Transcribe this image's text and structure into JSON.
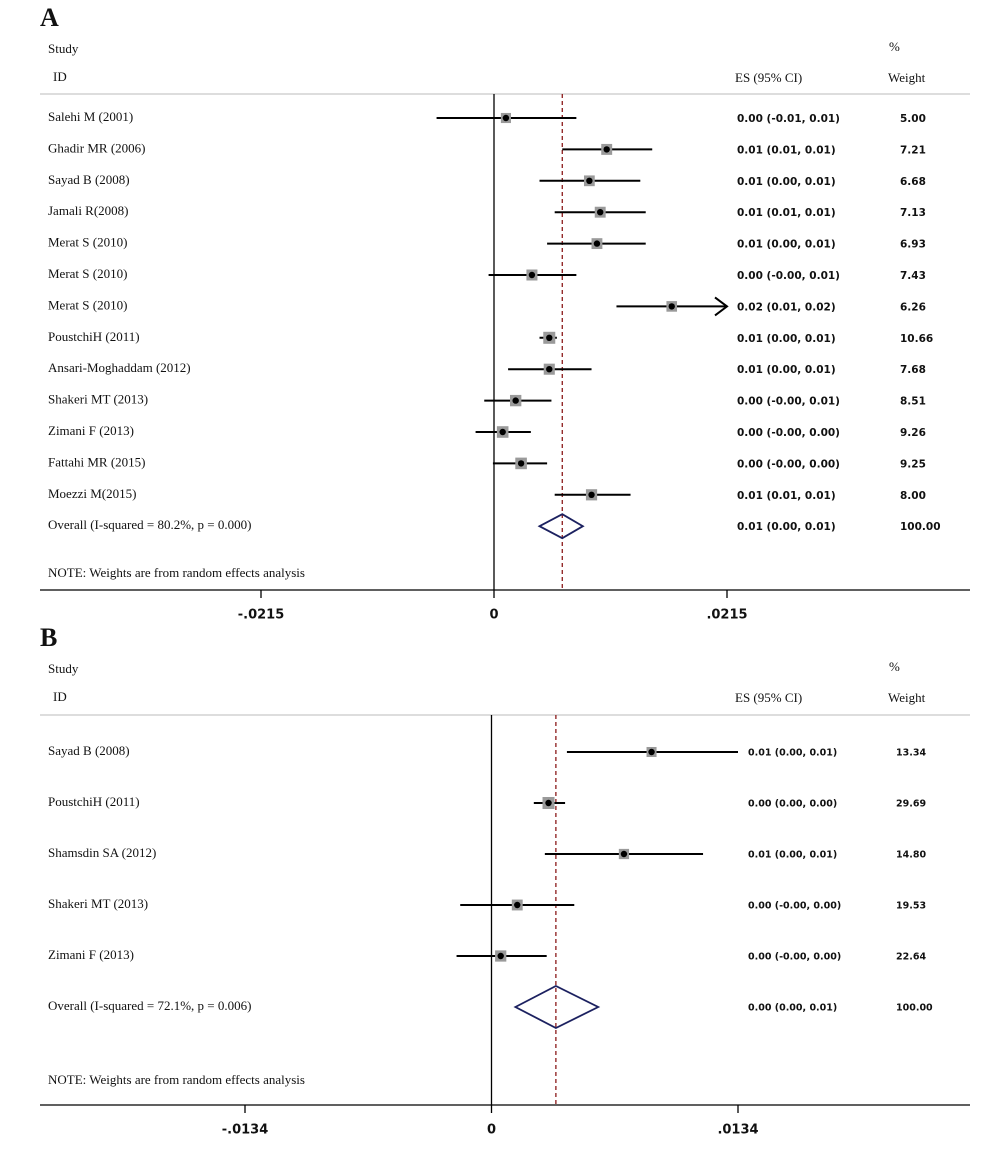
{
  "chart_data": [
    {
      "type": "forest",
      "panel": "A",
      "study_header": "Study",
      "id_header": "ID",
      "es_header": "ES (95% CI)",
      "weight_header_top": "%",
      "weight_header": "Weight",
      "note": "NOTE: Weights are from random effects analysis",
      "studies": [
        "Salehi M (2001)",
        "Ghadir MR (2006)",
        "Sayad B (2008)",
        "Jamali R(2008)",
        "Merat S (2010)",
        "Merat S (2010)",
        "Merat S (2010)",
        "PoustchiH (2011)",
        "Ansari-Moghaddam (2012)",
        "Shakeri MT (2013)",
        "Zimani F (2013)",
        "Fattahi MR (2015)",
        "Moezzi M(2015)"
      ],
      "values": [
        0.0011,
        0.0104,
        0.0088,
        0.0098,
        0.0095,
        0.0035,
        0.0164,
        0.0051,
        0.0051,
        0.002,
        0.0008,
        0.0025,
        0.009
      ],
      "lower": [
        -0.0053,
        0.0063,
        0.0042,
        0.0056,
        0.0049,
        -0.0005,
        0.0113,
        0.0042,
        0.0013,
        -0.0009,
        -0.0017,
        -0.0001,
        0.0056
      ],
      "upper": [
        0.0076,
        0.0146,
        0.0135,
        0.014,
        0.014,
        0.0076,
        0.024,
        0.0058,
        0.009,
        0.0053,
        0.0034,
        0.0049,
        0.0126
      ],
      "value_labels": [
        "0.00 (-0.01, 0.01)",
        "0.01 (0.01, 0.01)",
        "0.01 (0.00, 0.01)",
        "0.01 (0.01, 0.01)",
        "0.01 (0.00, 0.01)",
        "0.00 (-0.00, 0.01)",
        "0.02 (0.01, 0.02)",
        "0.01 (0.00, 0.01)",
        "0.01 (0.00, 0.01)",
        "0.00 (-0.00, 0.01)",
        "0.00 (-0.00, 0.00)",
        "0.00 (-0.00, 0.00)",
        "0.01 (0.01, 0.01)"
      ],
      "weights": [
        5,
        7.21,
        6.68,
        7.13,
        6.93,
        7.43,
        6.26,
        10.66,
        7.68,
        8.51,
        9.26,
        9.25,
        8
      ],
      "weight_labels": [
        "5.00",
        "7.21",
        "6.68",
        "7.13",
        "6.93",
        "7.43",
        "6.26",
        "10.66",
        "7.68",
        "8.51",
        "9.26",
        "9.25",
        "8.00"
      ],
      "overall": {
        "label": "Overall (I-squared = 80.2%, p = 0.000)",
        "value": 0.0063,
        "lower": 0.0042,
        "upper": 0.0082,
        "value_label": "0.01 (0.00, 0.01)",
        "weight": 100,
        "weight_label": "100.00"
      },
      "xlim": [
        -0.0215,
        0.0215
      ],
      "xticks": [
        {
          "value": -0.0215,
          "label": "-.0215"
        },
        0,
        {
          "value": 0.0215,
          "label": ".0215"
        }
      ],
      "square_color": "#9a9a9a",
      "diamond_color": "#1c2160",
      "overall_line_color": "#8b1a1a"
    },
    {
      "type": "forest",
      "panel": "B",
      "study_header": "Study",
      "id_header": "ID",
      "es_header": "ES (95% CI)",
      "weight_header_top": "%",
      "weight_header": "Weight",
      "note": "NOTE: Weights are from random effects analysis",
      "studies": [
        "Sayad B (2008)",
        "PoustchiH (2011)",
        "Shamsdin SA (2012)",
        "Shakeri MT (2013)",
        "Zimani F (2013)"
      ],
      "values": [
        0.0087,
        0.0031,
        0.0072,
        0.0014,
        0.0005
      ],
      "lower": [
        0.0041,
        0.0023,
        0.0029,
        -0.0017,
        -0.0019
      ],
      "upper": [
        0.0134,
        0.004,
        0.0115,
        0.0045,
        0.003
      ],
      "value_labels": [
        "0.01 (0.00, 0.01)",
        "0.00 (0.00, 0.00)",
        "0.01 (0.00, 0.01)",
        "0.00 (-0.00, 0.00)",
        "0.00 (-0.00, 0.00)"
      ],
      "weights": [
        13.34,
        29.69,
        14.8,
        19.53,
        22.64
      ],
      "weight_labels": [
        "13.34",
        "29.69",
        "14.80",
        "19.53",
        "22.64"
      ],
      "overall": {
        "label": "Overall (I-squared = 72.1%, p = 0.006)",
        "value": 0.0035,
        "lower": 0.0013,
        "upper": 0.0058,
        "value_label": "0.00 (0.00, 0.01)",
        "weight": 100,
        "weight_label": "100.00"
      },
      "xlim": [
        -0.0134,
        0.0134
      ],
      "xticks": [
        {
          "value": -0.0134,
          "label": "-.0134"
        },
        0,
        {
          "value": 0.0134,
          "label": ".0134"
        }
      ],
      "square_color": "#9a9a9a",
      "diamond_color": "#1c2160",
      "overall_line_color": "#8b1a1a"
    }
  ]
}
